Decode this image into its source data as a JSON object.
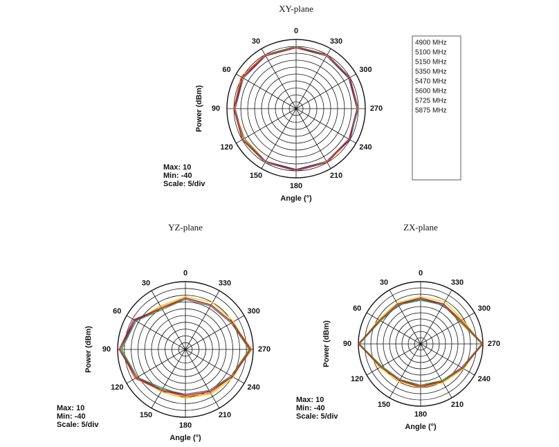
{
  "chart_data": [
    {
      "type": "polar",
      "title": "XY-plane",
      "xlabel": "Angle (°)",
      "ylabel": "Power (dBm)",
      "annotations": [
        "Max: 10",
        "Min: -40",
        "Scale: 5/div"
      ],
      "rlim": [
        -40,
        10
      ],
      "rticks": [
        -40,
        -35,
        -30,
        -25,
        -20,
        -15,
        -10,
        -5,
        0,
        5,
        10
      ],
      "theta": [
        0,
        30,
        60,
        90,
        120,
        150,
        180,
        210,
        240,
        270,
        300,
        330
      ],
      "thetaticks": [
        0,
        30,
        60,
        90,
        120,
        150,
        180,
        210,
        240,
        270,
        300,
        330
      ],
      "legend": "right",
      "series": [
        {
          "name": "4900 MHz",
          "color": "#e0d000",
          "values": [
            4,
            5,
            4,
            4,
            5,
            5,
            4,
            5,
            5,
            4,
            5,
            5
          ]
        },
        {
          "name": "5100 MHz",
          "color": "#3cb4d8",
          "values": [
            4,
            4,
            5,
            5,
            4,
            5,
            5,
            4,
            5,
            5,
            4,
            4
          ]
        },
        {
          "name": "5150 MHz",
          "color": "#9b1c8c",
          "values": [
            5,
            5,
            5,
            4,
            4,
            4,
            5,
            5,
            4,
            5,
            5,
            5
          ]
        },
        {
          "name": "5350 MHz",
          "color": "#e86a1a",
          "values": [
            4,
            5,
            6,
            5,
            3,
            4,
            4,
            5,
            5,
            4,
            5,
            4
          ]
        },
        {
          "name": "5470 MHz",
          "color": "#3aa040",
          "values": [
            5,
            4,
            5,
            5,
            4,
            4,
            5,
            4,
            4,
            5,
            4,
            5
          ]
        },
        {
          "name": "5600 MHz",
          "color": "#28287a",
          "values": [
            4,
            4,
            4,
            5,
            5,
            4,
            4,
            4,
            5,
            4,
            4,
            4
          ]
        },
        {
          "name": "5725 MHz",
          "color": "#707070",
          "values": [
            5,
            5,
            4,
            4,
            5,
            5,
            5,
            4,
            4,
            5,
            5,
            4
          ]
        },
        {
          "name": "5875 MHz",
          "color": "#d42020",
          "values": [
            4,
            4,
            5,
            5,
            5,
            4,
            5,
            5,
            4,
            4,
            5,
            5
          ]
        }
      ]
    },
    {
      "type": "polar",
      "title": "YZ-plane",
      "xlabel": "Angle (°)",
      "ylabel": "Power (dBm)",
      "annotations": [
        "Max: 10",
        "Min: -40",
        "Scale: 5/div"
      ],
      "rlim": [
        -40,
        10
      ],
      "rticks": [
        -40,
        -35,
        -30,
        -25,
        -20,
        -15,
        -10,
        -5,
        0,
        5,
        10
      ],
      "theta": [
        0,
        30,
        60,
        90,
        120,
        150,
        180,
        210,
        240,
        270,
        300,
        330
      ],
      "thetaticks": [
        0,
        30,
        60,
        90,
        120,
        150,
        180,
        210,
        240,
        270,
        300,
        330
      ],
      "series": [
        {
          "color": "#e0d000",
          "values": [
            -1,
            -3,
            2,
            7,
            1,
            -4,
            -4,
            -2,
            1,
            7,
            1,
            0
          ]
        },
        {
          "color": "#3cb4d8",
          "values": [
            -2,
            -5,
            3,
            8,
            2,
            -6,
            -6,
            -4,
            0,
            8,
            0,
            -2
          ]
        },
        {
          "color": "#9b1c8c",
          "values": [
            -3,
            -5,
            4,
            8,
            2,
            -6,
            -7,
            -5,
            -1,
            8,
            -1,
            -3
          ]
        },
        {
          "color": "#e86a1a",
          "values": [
            -2,
            -4,
            3,
            8,
            3,
            -5,
            -5,
            -3,
            0,
            9,
            0,
            -2
          ]
        },
        {
          "color": "#3aa040",
          "values": [
            -3,
            -6,
            2,
            7,
            1,
            -7,
            -6,
            -4,
            -1,
            7,
            -1,
            -3
          ]
        },
        {
          "color": "#28287a",
          "values": [
            -2,
            -5,
            3,
            8,
            2,
            -6,
            -6,
            -4,
            0,
            8,
            0,
            -2
          ]
        },
        {
          "color": "#707070",
          "values": [
            -3,
            -5,
            2,
            8,
            1,
            -6,
            -7,
            -5,
            -1,
            8,
            -1,
            -3
          ]
        },
        {
          "color": "#d42020",
          "values": [
            -2,
            -5,
            4,
            9,
            2,
            -5,
            -6,
            -4,
            0,
            8,
            0,
            -2
          ]
        }
      ]
    },
    {
      "type": "polar",
      "title": "ZX-plane",
      "xlabel": "Angle (°)",
      "ylabel": "Power (dBm)",
      "annotations": [
        "Max: 10",
        "Min: -40",
        "Scale: 5/div"
      ],
      "rlim": [
        -40,
        10
      ],
      "rticks": [
        -40,
        -35,
        -30,
        -25,
        -20,
        -15,
        -10,
        -5,
        0,
        5,
        10
      ],
      "theta": [
        0,
        30,
        60,
        90,
        120,
        150,
        180,
        210,
        240,
        270,
        300,
        330
      ],
      "thetaticks": [
        0,
        30,
        60,
        90,
        120,
        150,
        180,
        210,
        240,
        270,
        300,
        330
      ],
      "series": [
        {
          "color": "#e0d000",
          "values": [
            -2,
            -2,
            -1,
            9,
            -2,
            -5,
            -5,
            -4,
            0,
            9,
            -1,
            -1
          ]
        },
        {
          "color": "#3cb4d8",
          "values": [
            -4,
            -3,
            -2,
            10,
            -3,
            -6,
            -6,
            -5,
            -1,
            10,
            -3,
            -3
          ]
        },
        {
          "color": "#9b1c8c",
          "values": [
            -4,
            -4,
            -3,
            10,
            -4,
            -7,
            -6,
            -6,
            -2,
            10,
            -3,
            -4
          ]
        },
        {
          "color": "#e86a1a",
          "values": [
            -3,
            -3,
            -2,
            10,
            -3,
            -6,
            -5,
            -5,
            -1,
            10,
            -2,
            -3
          ]
        },
        {
          "color": "#3aa040",
          "values": [
            -5,
            -4,
            -3,
            9,
            -4,
            -7,
            -7,
            -6,
            -2,
            9,
            -4,
            -4
          ]
        },
        {
          "color": "#28287a",
          "values": [
            -4,
            -3,
            -2,
            10,
            -3,
            -6,
            -6,
            -5,
            -1,
            10,
            -3,
            -3
          ]
        },
        {
          "color": "#707070",
          "values": [
            -4,
            -4,
            -2,
            10,
            -3,
            -7,
            -6,
            -5,
            -2,
            10,
            -3,
            -4
          ]
        },
        {
          "color": "#d42020",
          "values": [
            -3,
            -3,
            -2,
            10,
            -3,
            -6,
            -6,
            -5,
            -1,
            10,
            -3,
            -3
          ]
        }
      ]
    }
  ]
}
